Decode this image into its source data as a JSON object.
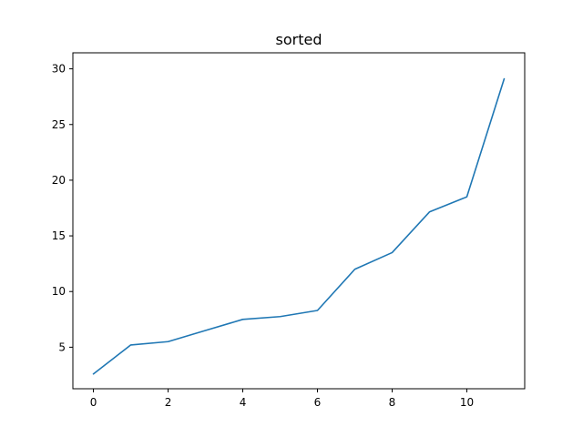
{
  "chart_data": {
    "type": "line",
    "title": "sorted",
    "xlabel": "",
    "ylabel": "",
    "xlim": [
      -0.55,
      11.55
    ],
    "ylim": [
      1.27,
      31.44
    ],
    "xticks": [
      0,
      2,
      4,
      6,
      8,
      10
    ],
    "yticks": [
      5,
      10,
      15,
      20,
      25,
      30
    ],
    "grid": false,
    "series": [
      {
        "name": "sorted",
        "color": "#1f77b4",
        "x": [
          0,
          1,
          2,
          3,
          4,
          5,
          6,
          7,
          8,
          9,
          10,
          11
        ],
        "y": [
          2.6,
          5.2,
          5.5,
          6.5,
          7.5,
          7.75,
          8.3,
          12.0,
          13.5,
          17.15,
          18.5,
          29.1
        ]
      }
    ]
  }
}
